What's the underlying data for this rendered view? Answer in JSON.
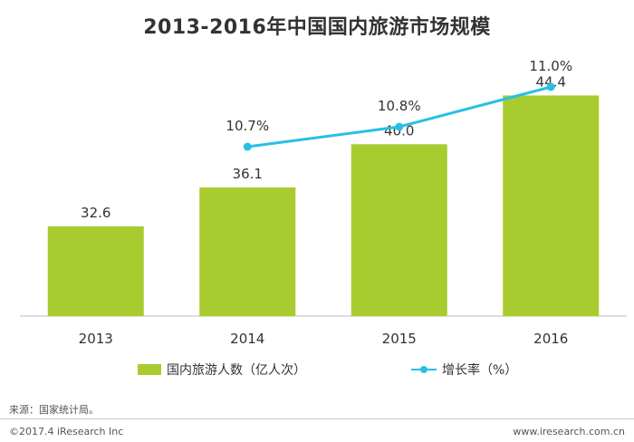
{
  "chart_data": {
    "type": "bar",
    "title": "2013-2016年中国国内旅游市场规模",
    "categories": [
      "2013",
      "2014",
      "2015",
      "2016"
    ],
    "series": [
      {
        "name": "国内旅游人数（亿人次）",
        "type": "bar",
        "values": [
          32.6,
          36.1,
          40.0,
          44.4
        ],
        "labels": [
          "32.6",
          "36.1",
          "40.0",
          "44.4"
        ],
        "color": "#a8cc2f"
      },
      {
        "name": "增长率（%）",
        "type": "line",
        "values": [
          null,
          10.7,
          10.8,
          11.0
        ],
        "labels": [
          "",
          "10.7%",
          "10.8%",
          "11.0%"
        ],
        "color": "#27c0e3"
      }
    ],
    "xlabel": "",
    "ylabel": "",
    "grid": false,
    "legend": "bottom"
  },
  "source": "来源：国家统计局。",
  "footer": {
    "copyright": "©2017.4 iResearch Inc",
    "website": "www.iresearch.com.cn"
  }
}
